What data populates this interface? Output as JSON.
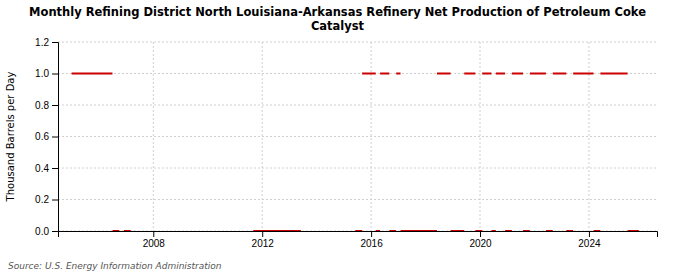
{
  "chart_data": {
    "type": "line",
    "title": "Monthly Refining District North Louisiana-Arkansas Refinery Net Production of Petroleum Coke\nCatalyst",
    "y_label": "Thousand Barrels per Day",
    "source": "Source: U.S. Energy Information Administration",
    "color": "#cc0000",
    "grid": true,
    "xlim": [
      2004.5,
      2026.5
    ],
    "xticks": [
      2008,
      2012,
      2016,
      2020,
      2024
    ],
    "ylim": [
      0.0,
      1.2
    ],
    "yticks": [
      {
        "value": 0.0,
        "label": "0.0"
      },
      {
        "value": 0.2,
        "label": "0.2"
      },
      {
        "value": 0.4,
        "label": "0.4"
      },
      {
        "value": 0.6,
        "label": "0.6"
      },
      {
        "value": 0.8,
        "label": "0.8"
      },
      {
        "value": 1.0,
        "label": "1.0"
      },
      {
        "value": 1.2,
        "label": "1.2"
      }
    ],
    "series": [
      {
        "x": [
          2005.0,
          2006.5
        ],
        "values": [
          1.0,
          1.0
        ]
      },
      {
        "x": [
          2015.67,
          2016.17
        ],
        "values": [
          1.0,
          1.0
        ]
      },
      {
        "x": [
          2016.33,
          2016.67
        ],
        "values": [
          1.0,
          1.0
        ]
      },
      {
        "x": [
          2016.92,
          2017.08
        ],
        "values": [
          1.0,
          1.0
        ]
      },
      {
        "x": [
          2018.42,
          2018.92
        ],
        "values": [
          1.0,
          1.0
        ]
      },
      {
        "x": [
          2019.42,
          2019.83
        ],
        "values": [
          1.0,
          1.0
        ]
      },
      {
        "x": [
          2020.08,
          2020.42
        ],
        "values": [
          1.0,
          1.0
        ]
      },
      {
        "x": [
          2020.58,
          2020.92
        ],
        "values": [
          1.0,
          1.0
        ]
      },
      {
        "x": [
          2021.17,
          2021.58
        ],
        "values": [
          1.0,
          1.0
        ]
      },
      {
        "x": [
          2021.83,
          2022.42
        ],
        "values": [
          1.0,
          1.0
        ]
      },
      {
        "x": [
          2022.67,
          2023.17
        ],
        "values": [
          1.0,
          1.0
        ]
      },
      {
        "x": [
          2023.42,
          2024.17
        ],
        "values": [
          1.0,
          1.0
        ]
      },
      {
        "x": [
          2024.42,
          2025.42
        ],
        "values": [
          1.0,
          1.0
        ]
      },
      {
        "x": [
          2006.5,
          2006.75
        ],
        "values": [
          0.0,
          0.0
        ]
      },
      {
        "x": [
          2006.92,
          2007.17
        ],
        "values": [
          0.0,
          0.0
        ]
      },
      {
        "x": [
          2011.67,
          2013.42
        ],
        "values": [
          0.0,
          0.0
        ]
      },
      {
        "x": [
          2015.42,
          2015.67
        ],
        "values": [
          0.0,
          0.0
        ]
      },
      {
        "x": [
          2016.17,
          2016.33
        ],
        "values": [
          0.0,
          0.0
        ]
      },
      {
        "x": [
          2016.67,
          2016.92
        ],
        "values": [
          0.0,
          0.0
        ]
      },
      {
        "x": [
          2017.08,
          2018.42
        ],
        "values": [
          0.0,
          0.0
        ]
      },
      {
        "x": [
          2018.92,
          2019.42
        ],
        "values": [
          0.0,
          0.0
        ]
      },
      {
        "x": [
          2019.83,
          2020.08
        ],
        "values": [
          0.0,
          0.0
        ]
      },
      {
        "x": [
          2020.42,
          2020.58
        ],
        "values": [
          0.0,
          0.0
        ]
      },
      {
        "x": [
          2020.92,
          2021.17
        ],
        "values": [
          0.0,
          0.0
        ]
      },
      {
        "x": [
          2021.58,
          2021.83
        ],
        "values": [
          0.0,
          0.0
        ]
      },
      {
        "x": [
          2022.42,
          2022.67
        ],
        "values": [
          0.0,
          0.0
        ]
      },
      {
        "x": [
          2023.17,
          2023.42
        ],
        "values": [
          0.0,
          0.0
        ]
      },
      {
        "x": [
          2024.17,
          2024.42
        ],
        "values": [
          0.0,
          0.0
        ]
      },
      {
        "x": [
          2025.42,
          2025.83
        ],
        "values": [
          0.0,
          0.0
        ]
      }
    ]
  }
}
